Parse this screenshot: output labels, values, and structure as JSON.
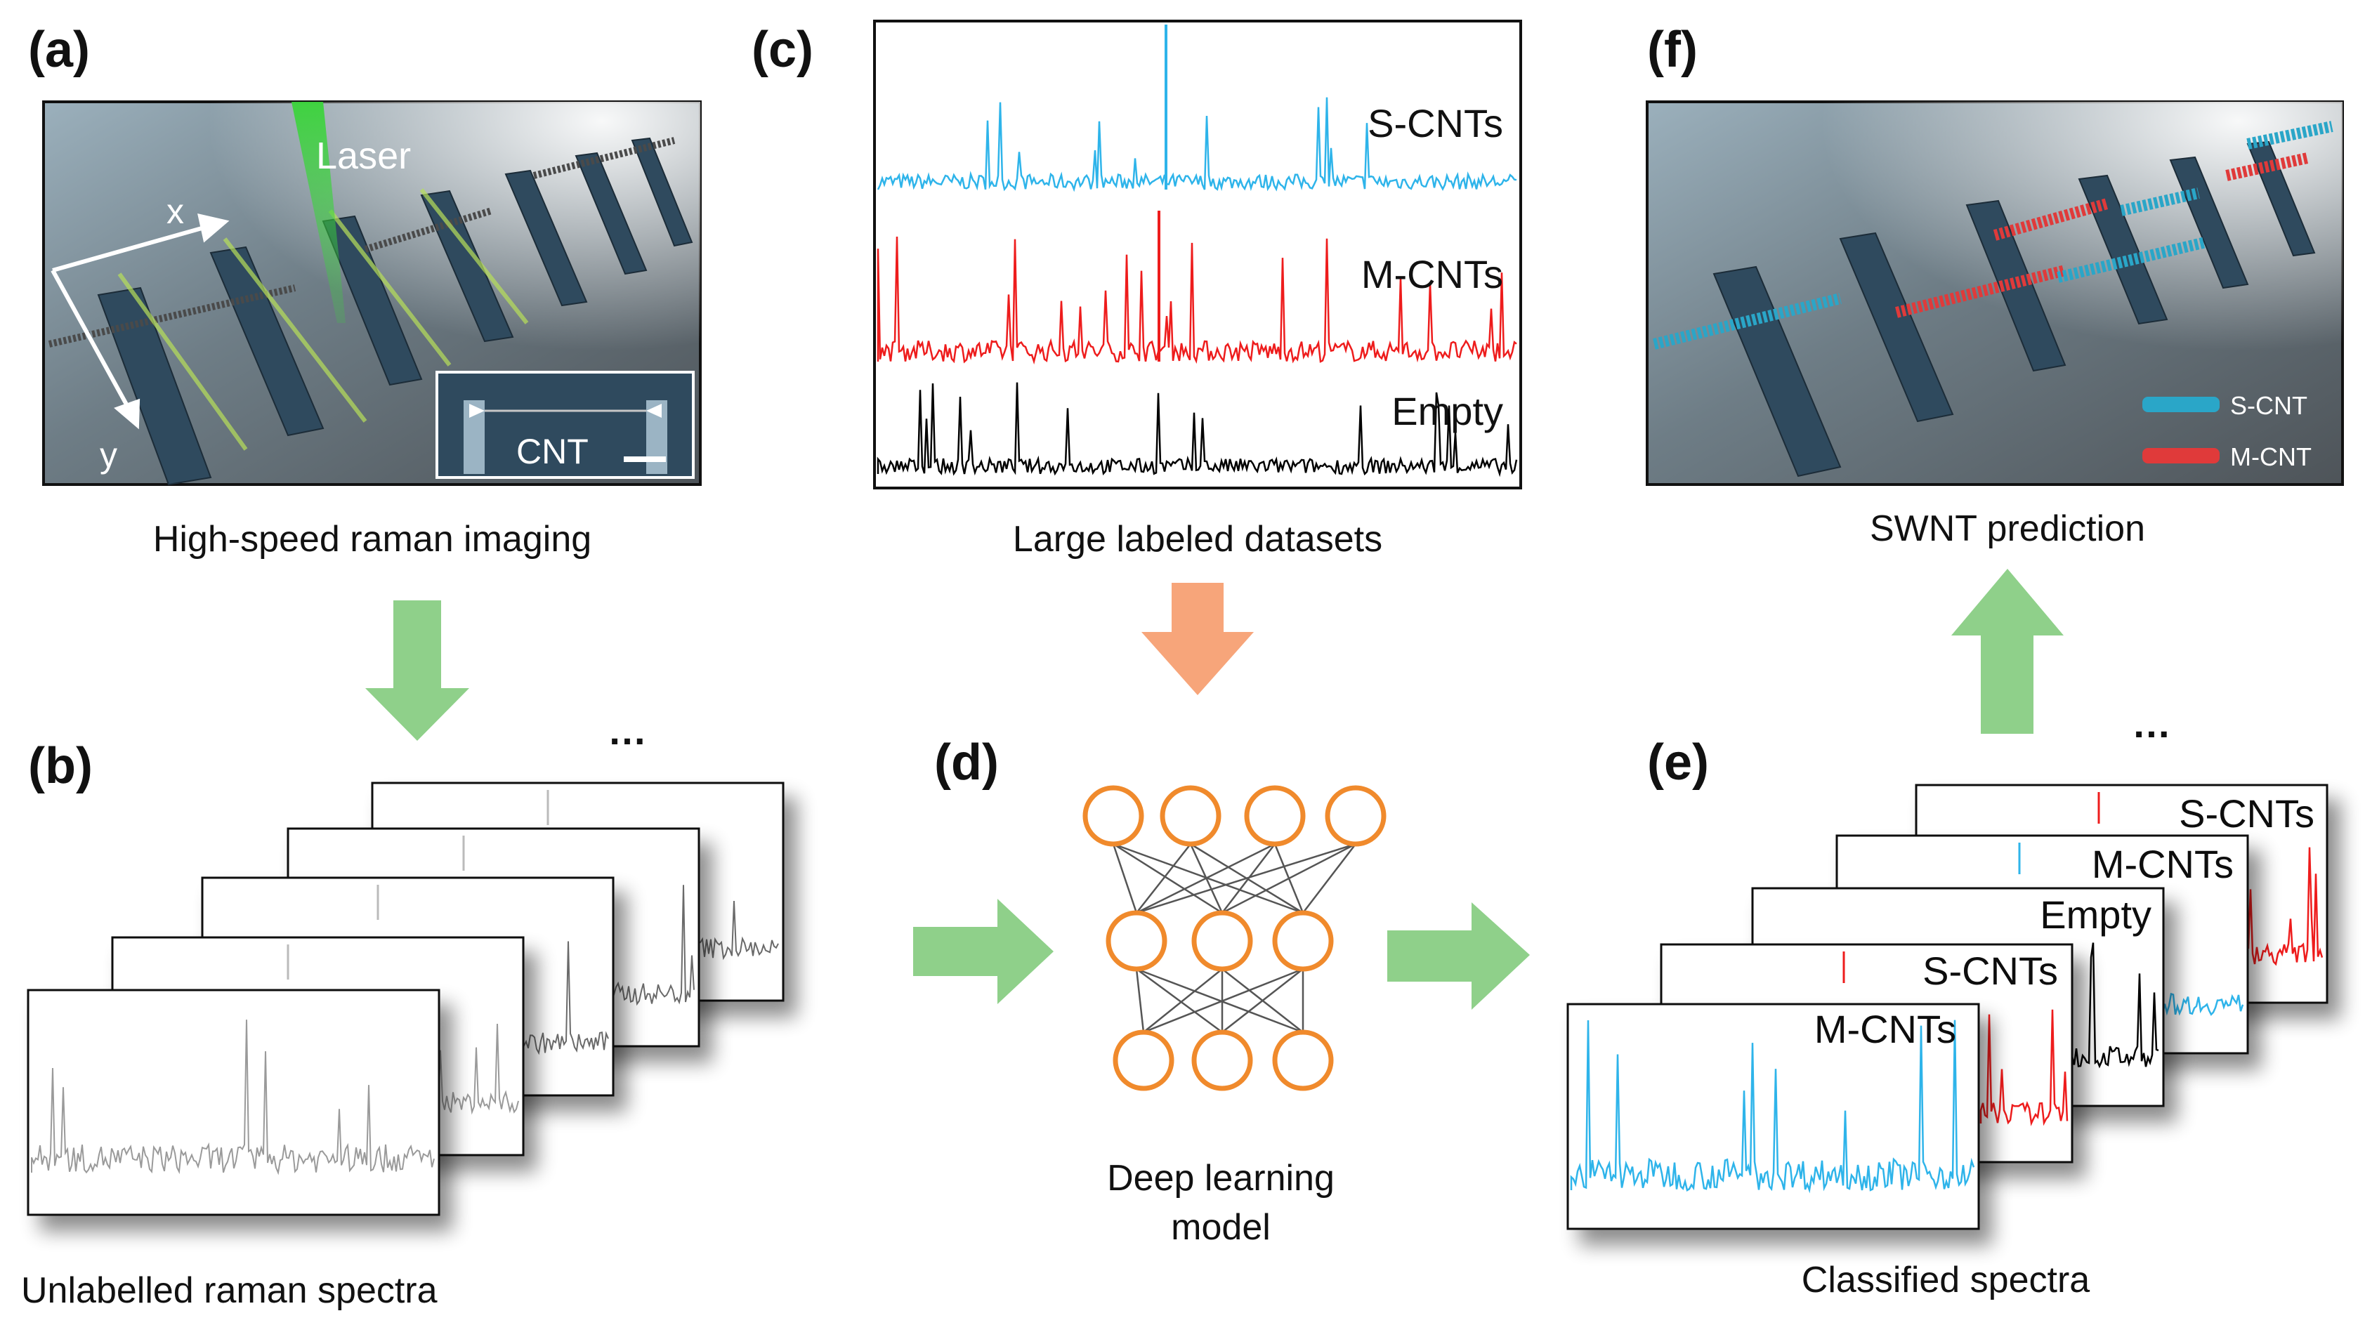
{
  "panels": {
    "a": {
      "letter": "(a)",
      "caption": "High-speed raman imaging",
      "laser_label": "Laser",
      "x_axis": "x",
      "y_axis": "y",
      "inset_label": "CNT"
    },
    "b": {
      "letter": "(b)",
      "caption": "Unlabelled raman spectra",
      "ellipsis": "…"
    },
    "c": {
      "letter": "(c)",
      "caption": "Large labeled datasets",
      "series": [
        {
          "name": "S-CNTs",
          "color": "#2eb4ea"
        },
        {
          "name": "M-CNTs",
          "color": "#ee1c1c"
        },
        {
          "name": "Empty",
          "color": "#000000"
        }
      ]
    },
    "d": {
      "letter": "(d)",
      "caption_line1": "Deep learning",
      "caption_line2": "model",
      "layers": [
        4,
        3,
        3
      ],
      "node_color": "#f08a2c"
    },
    "e": {
      "letter": "(e)",
      "caption": "Classified spectra",
      "ellipsis": "…",
      "cards": [
        {
          "label": "S-CNTs",
          "color": "#ee1c1c"
        },
        {
          "label": "M-CNTs",
          "color": "#2eb4ea"
        },
        {
          "label": "Empty",
          "color": "#000000"
        },
        {
          "label": "S-CNTs",
          "color": "#ee1c1c"
        },
        {
          "label": "M-CNTs",
          "color": "#2eb4ea"
        }
      ]
    },
    "f": {
      "letter": "(f)",
      "caption": "SWNT prediction",
      "legend": [
        {
          "label": "S-CNT",
          "color": "#2aa6c8"
        },
        {
          "label": "M-CNT",
          "color": "#e03a3a"
        }
      ]
    }
  },
  "colors": {
    "arrow_green": "#8fd08a",
    "arrow_orange": "#f7a57a",
    "spectra_gray": "#8a8a8a"
  }
}
